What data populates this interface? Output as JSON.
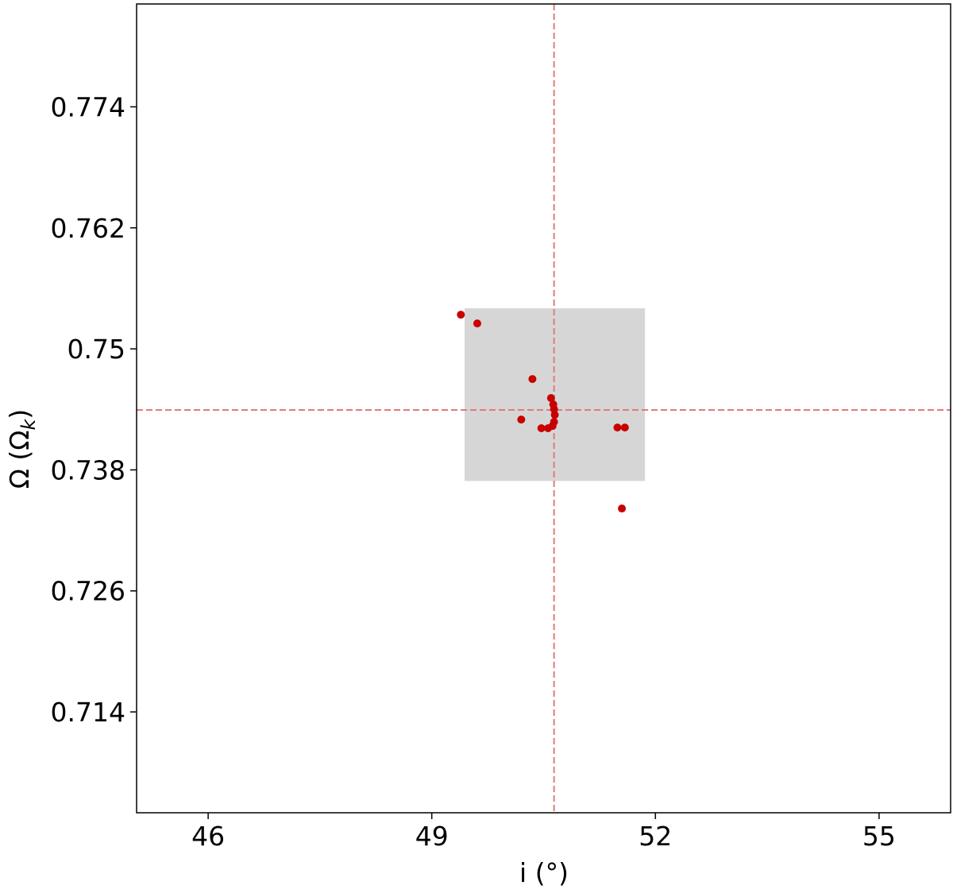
{
  "chart_data": {
    "type": "scatter",
    "xlabel": "i (°)",
    "ylabel": [
      "Ω (Ω",
      "k",
      ")"
    ],
    "xlim": [
      45.04,
      55.96
    ],
    "ylim": [
      0.704,
      0.7842
    ],
    "xticks": [
      46,
      49,
      52,
      55
    ],
    "yticks": [
      0.714,
      0.726,
      0.738,
      0.75,
      0.762,
      0.774
    ],
    "vline": 50.64,
    "hline": 0.74394,
    "line_color": "#e07b7b",
    "band": {
      "x": [
        49.44,
        51.86
      ],
      "y": [
        0.7369,
        0.75402
      ],
      "color": "#d6d6d6"
    },
    "series": [
      {
        "color": "#c80000",
        "x": [
          49.39,
          49.61,
          50.35,
          50.2,
          50.47,
          50.56,
          50.6,
          50.63,
          50.64,
          50.65,
          50.64,
          50.62,
          51.49,
          51.59,
          51.55
        ],
        "values": [
          0.75339,
          0.75252,
          0.74701,
          0.74299,
          0.74213,
          0.74213,
          0.74512,
          0.74449,
          0.74402,
          0.74346,
          0.74276,
          0.74236,
          0.7422,
          0.7422,
          0.73417
        ]
      }
    ]
  }
}
